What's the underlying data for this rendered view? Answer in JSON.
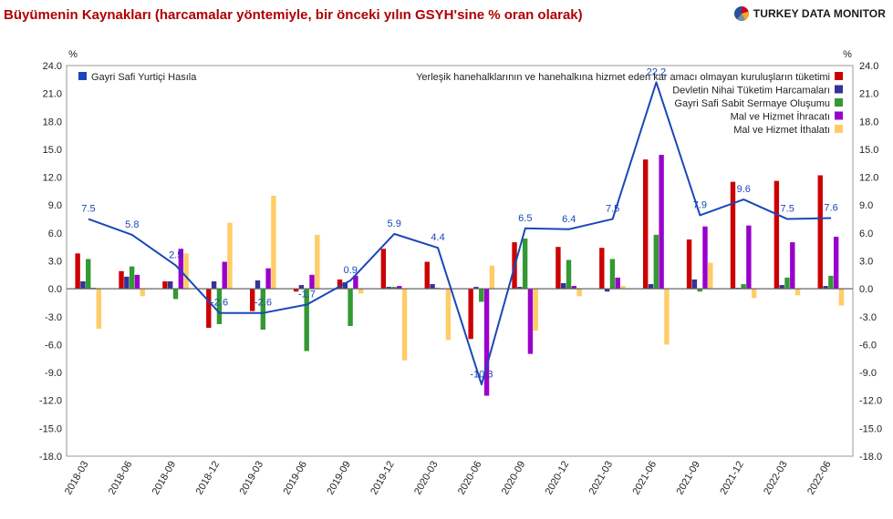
{
  "header": {
    "title": "Büyümenin Kaynakları (harcamalar yöntemiyle, bir önceki yılın GSYH'sine % oran olarak)",
    "brand": "TURKEY DATA MONITOR"
  },
  "chart_data": {
    "type": "bar",
    "unit_left": "%",
    "unit_right": "%",
    "ylim": [
      -18,
      24
    ],
    "yticks": [
      "24.0",
      "21.0",
      "18.0",
      "15.0",
      "12.0",
      "9.0",
      "6.0",
      "3.0",
      "0.0",
      "-3.0",
      "-6.0",
      "-9.0",
      "-12.0",
      "-15.0",
      "-18.0"
    ],
    "grid": false,
    "legend_position": "top-right",
    "categories": [
      "2018-03",
      "2018-06",
      "2018-09",
      "2018-12",
      "2019-03",
      "2019-06",
      "2019-09",
      "2019-12",
      "2020-03",
      "2020-06",
      "2020-09",
      "2020-12",
      "2021-03",
      "2021-06",
      "2021-09",
      "2021-12",
      "2022-03",
      "2022-06"
    ],
    "line_series": {
      "name": "Gayri Safi Yurtiçi Hasıla",
      "color": "#1a47b8",
      "values": [
        7.5,
        5.8,
        2.5,
        -2.6,
        -2.6,
        -1.7,
        0.9,
        5.9,
        4.4,
        -10.3,
        6.5,
        6.4,
        7.5,
        22.2,
        7.9,
        9.6,
        7.5,
        7.6
      ],
      "labels": [
        "7.5",
        "5.8",
        "2.5",
        "-2.6",
        "-2.6",
        "-1.7",
        "0.9",
        "5.9",
        "4.4",
        "-10.3",
        "6.5",
        "6.4",
        "7.5",
        "22.2",
        "7.9",
        "9.6",
        "7.5",
        "7.6"
      ]
    },
    "series": [
      {
        "name": "Yerleşik hanehalklarının ve hanehalkına hizmet eden kar amacı olmayan kuruluşların tüketimi",
        "color": "#cc0000",
        "values": [
          3.8,
          1.9,
          0.8,
          -4.2,
          -2.4,
          -0.3,
          1.0,
          4.3,
          2.9,
          -5.4,
          5.0,
          4.5,
          4.4,
          13.9,
          5.3,
          11.5,
          11.6,
          12.2
        ]
      },
      {
        "name": "Devletin Nihai Tüketim Harcamaları",
        "color": "#333399",
        "values": [
          0.8,
          1.3,
          0.8,
          0.8,
          0.9,
          0.4,
          0.7,
          0.2,
          0.5,
          0.2,
          0.2,
          0.6,
          -0.3,
          0.5,
          1.0,
          0.1,
          0.4,
          0.3
        ]
      },
      {
        "name": "Gayri Safi Sabit Sermaye Oluşumu",
        "color": "#339933",
        "values": [
          3.2,
          2.4,
          -1.1,
          -3.8,
          -4.4,
          -6.7,
          -4.0,
          0.2,
          0.1,
          -1.4,
          5.4,
          3.1,
          3.2,
          5.8,
          -0.3,
          0.5,
          1.2,
          1.4
        ]
      },
      {
        "name": "Mal ve Hizmet İhracatı",
        "color": "#9900cc",
        "values": [
          0.1,
          1.5,
          4.3,
          2.9,
          2.2,
          1.5,
          1.4,
          0.3,
          0.0,
          -11.5,
          -7.0,
          0.3,
          1.2,
          14.4,
          6.7,
          6.8,
          5.0,
          5.6
        ]
      },
      {
        "name": "Mal ve Hizmet İthalatı",
        "color": "#ffcc66",
        "values": [
          -4.3,
          -0.8,
          3.8,
          7.1,
          10.0,
          5.8,
          -0.5,
          -7.7,
          -5.5,
          2.5,
          -4.5,
          -0.8,
          0.3,
          -6.0,
          2.8,
          -1.0,
          -0.7,
          -1.8
        ]
      }
    ]
  }
}
